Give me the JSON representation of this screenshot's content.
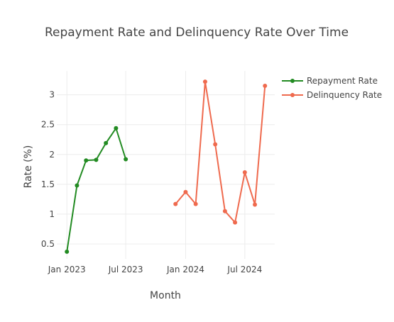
{
  "chart_data": {
    "type": "line",
    "title": "Repayment Rate and Delinquency Rate Over Time",
    "xlabel": "Month",
    "ylabel": "Rate (%)",
    "x_axis": {
      "type": "date",
      "range": [
        "2022-12-01",
        "2024-10-01"
      ],
      "ticks": [
        {
          "date": "2023-01-01",
          "label": "Jan 2023"
        },
        {
          "date": "2023-07-01",
          "label": "Jul 2023"
        },
        {
          "date": "2024-01-01",
          "label": "Jan 2024"
        },
        {
          "date": "2024-07-01",
          "label": "Jul 2024"
        }
      ]
    },
    "y_axis": {
      "range": [
        0.25,
        3.4
      ],
      "ticks": [
        {
          "value": 0.5,
          "label": "0.5"
        },
        {
          "value": 1,
          "label": "1"
        },
        {
          "value": 1.5,
          "label": "1.5"
        },
        {
          "value": 2,
          "label": "2"
        },
        {
          "value": 2.5,
          "label": "2.5"
        },
        {
          "value": 3,
          "label": "3"
        }
      ]
    },
    "grid": true,
    "legend_position": "top-right",
    "series": [
      {
        "name": "Repayment Rate",
        "color": "#228b22",
        "points": [
          {
            "x": "2023-01-01",
            "y": 0.37
          },
          {
            "x": "2023-02-01",
            "y": 1.48
          },
          {
            "x": "2023-03-01",
            "y": 1.9
          },
          {
            "x": "2023-04-01",
            "y": 1.91
          },
          {
            "x": "2023-05-01",
            "y": 2.19
          },
          {
            "x": "2023-06-01",
            "y": 2.44
          },
          {
            "x": "2023-07-01",
            "y": 1.92
          }
        ]
      },
      {
        "name": "Delinquency Rate",
        "color": "#ef6a4e",
        "points": [
          {
            "x": "2023-12-01",
            "y": 1.17
          },
          {
            "x": "2024-01-01",
            "y": 1.37
          },
          {
            "x": "2024-02-01",
            "y": 1.17
          },
          {
            "x": "2024-03-01",
            "y": 3.22
          },
          {
            "x": "2024-04-01",
            "y": 2.17
          },
          {
            "x": "2024-05-01",
            "y": 1.05
          },
          {
            "x": "2024-06-01",
            "y": 0.86
          },
          {
            "x": "2024-07-01",
            "y": 1.7
          },
          {
            "x": "2024-08-01",
            "y": 1.16
          },
          {
            "x": "2024-09-01",
            "y": 3.15
          }
        ]
      }
    ]
  }
}
